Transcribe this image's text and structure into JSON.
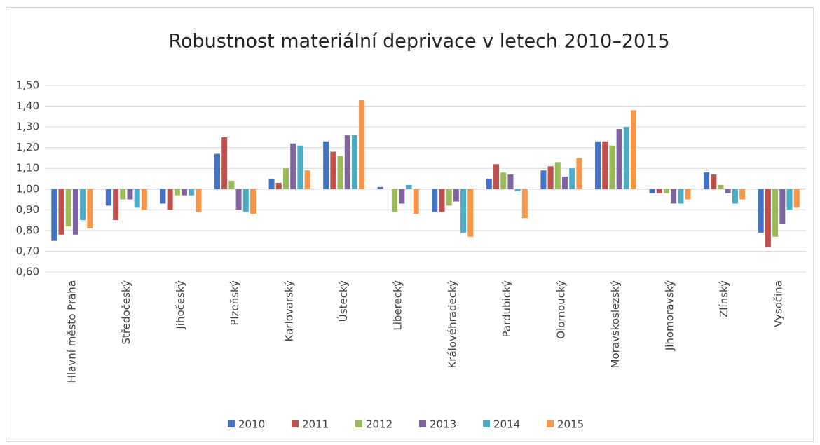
{
  "chart_data": {
    "type": "bar",
    "title": "Robustnost materiální deprivace v letech 2010–2015",
    "categories": [
      "Hlavní město Praha",
      "Středočeský",
      "Jihočeský",
      "Plzeňský",
      "Karlovarský",
      "Ústecký",
      "Liberecký",
      "Královéhradecký",
      "Pardubický",
      "Olomoucký",
      "Moravskoslezský",
      "Jihomoravský",
      "Zlínský",
      "Vysočina"
    ],
    "series": [
      {
        "name": "2010",
        "color": "#4472c4",
        "values": [
          0.75,
          0.92,
          0.93,
          1.17,
          1.05,
          1.23,
          1.01,
          0.89,
          1.05,
          1.09,
          1.23,
          0.98,
          1.08,
          0.79
        ]
      },
      {
        "name": "2011",
        "color": "#c0504d",
        "values": [
          0.78,
          0.85,
          0.9,
          1.25,
          1.03,
          1.18,
          1.0,
          0.89,
          1.12,
          1.11,
          1.23,
          0.98,
          1.07,
          0.72
        ]
      },
      {
        "name": "2012",
        "color": "#9bbb59",
        "values": [
          0.82,
          0.95,
          0.97,
          1.04,
          1.1,
          1.16,
          0.89,
          0.92,
          1.08,
          1.13,
          1.21,
          0.98,
          1.02,
          0.77
        ]
      },
      {
        "name": "2013",
        "color": "#8064a2",
        "values": [
          0.78,
          0.95,
          0.97,
          0.9,
          1.22,
          1.26,
          0.93,
          0.94,
          1.07,
          1.06,
          1.29,
          0.93,
          0.98,
          0.83
        ]
      },
      {
        "name": "2014",
        "color": "#4bacc6",
        "values": [
          0.85,
          0.91,
          0.97,
          0.89,
          1.21,
          1.26,
          1.02,
          0.79,
          0.99,
          1.1,
          1.3,
          0.93,
          0.93,
          0.9
        ]
      },
      {
        "name": "2015",
        "color": "#f79646",
        "values": [
          0.81,
          0.9,
          0.89,
          0.88,
          1.09,
          1.43,
          0.88,
          0.77,
          0.86,
          1.15,
          1.38,
          0.95,
          0.95,
          0.91
        ]
      }
    ],
    "ylim": [
      0.6,
      1.5
    ],
    "yticks": [
      {
        "value": 0.6,
        "label": "0,60"
      },
      {
        "value": 0.7,
        "label": "0,70"
      },
      {
        "value": 0.8,
        "label": "0,80"
      },
      {
        "value": 0.9,
        "label": "0,90"
      },
      {
        "value": 1.0,
        "label": "1,00"
      },
      {
        "value": 1.1,
        "label": "1,10"
      },
      {
        "value": 1.2,
        "label": "1,20"
      },
      {
        "value": 1.3,
        "label": "1,30"
      },
      {
        "value": 1.4,
        "label": "1,40"
      },
      {
        "value": 1.5,
        "label": "1,50"
      }
    ],
    "x_axis_crosses_at": 1.0,
    "grid": true,
    "legend": "bottom"
  }
}
